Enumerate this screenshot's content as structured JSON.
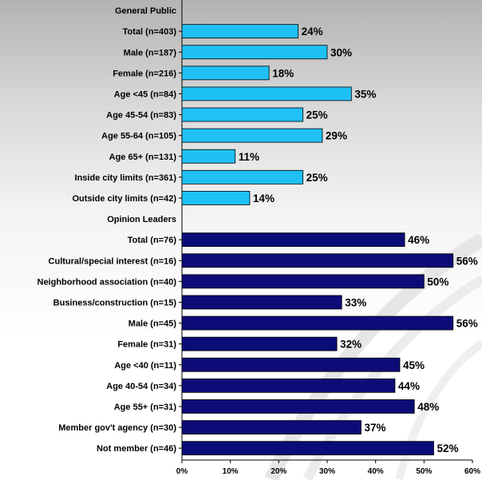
{
  "chart_data": {
    "type": "bar",
    "orientation": "horizontal",
    "xlim": [
      0,
      60
    ],
    "x_ticks": [
      "0%",
      "10%",
      "20%",
      "30%",
      "40%",
      "50%",
      "60%"
    ],
    "colors": {
      "general_public": "#1fc1f5",
      "opinion_leaders": "#0c0c78"
    },
    "rows": [
      {
        "label": "General Public",
        "header": true
      },
      {
        "label": "Total (n=403)",
        "value": 24,
        "value_label": "24%",
        "group": "general_public"
      },
      {
        "label": "Male (n=187)",
        "value": 30,
        "value_label": "30%",
        "group": "general_public"
      },
      {
        "label": "Female (n=216)",
        "value": 18,
        "value_label": "18%",
        "group": "general_public"
      },
      {
        "label": "Age <45 (n=84)",
        "value": 35,
        "value_label": "35%",
        "group": "general_public"
      },
      {
        "label": "Age 45-54 (n=83)",
        "value": 25,
        "value_label": "25%",
        "group": "general_public"
      },
      {
        "label": "Age 55-64 (n=105)",
        "value": 29,
        "value_label": "29%",
        "group": "general_public"
      },
      {
        "label": "Age 65+ (n=131)",
        "value": 11,
        "value_label": "11%",
        "group": "general_public"
      },
      {
        "label": "Inside city limits (n=361)",
        "value": 25,
        "value_label": "25%",
        "group": "general_public"
      },
      {
        "label": "Outside city limits (n=42)",
        "value": 14,
        "value_label": "14%",
        "group": "general_public"
      },
      {
        "label": "Opinion Leaders",
        "header": true
      },
      {
        "label": "Total (n=76)",
        "value": 46,
        "value_label": "46%",
        "group": "opinion_leaders"
      },
      {
        "label": "Cultural/special interest (n=16)",
        "value": 56,
        "value_label": "56%",
        "group": "opinion_leaders"
      },
      {
        "label": "Neighborhood association (n=40)",
        "value": 50,
        "value_label": "50%",
        "group": "opinion_leaders"
      },
      {
        "label": "Business/construction (n=15)",
        "value": 33,
        "value_label": "33%",
        "group": "opinion_leaders"
      },
      {
        "label": "Male (n=45)",
        "value": 56,
        "value_label": "56%",
        "group": "opinion_leaders"
      },
      {
        "label": "Female (n=31)",
        "value": 32,
        "value_label": "32%",
        "group": "opinion_leaders"
      },
      {
        "label": "Age <40 (n=11)",
        "value": 45,
        "value_label": "45%",
        "group": "opinion_leaders"
      },
      {
        "label": "Age 40-54 (n=34)",
        "value": 44,
        "value_label": "44%",
        "group": "opinion_leaders"
      },
      {
        "label": "Age 55+ (n=31)",
        "value": 48,
        "value_label": "48%",
        "group": "opinion_leaders"
      },
      {
        "label": "Member gov't agency (n=30)",
        "value": 37,
        "value_label": "37%",
        "group": "opinion_leaders"
      },
      {
        "label": "Not member (n=46)",
        "value": 52,
        "value_label": "52%",
        "group": "opinion_leaders"
      }
    ]
  }
}
